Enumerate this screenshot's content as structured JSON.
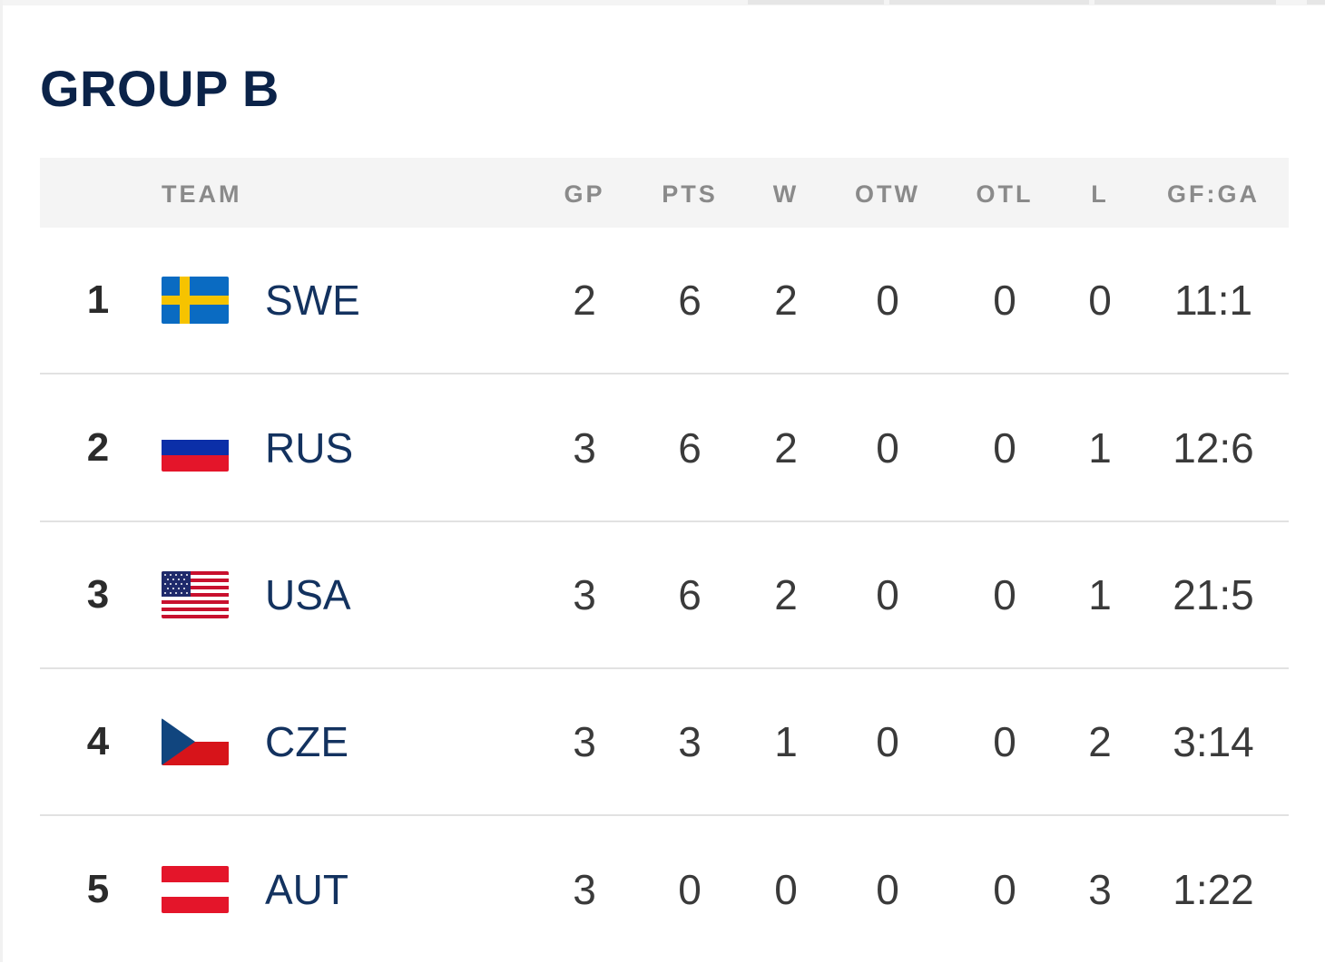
{
  "standings": {
    "title": "GROUP B",
    "columns": {
      "team": "TEAM",
      "gp": "GP",
      "pts": "PTS",
      "w": "W",
      "otw": "OTW",
      "otl": "OTL",
      "l": "L",
      "gfga": "GF:GA"
    },
    "rows": [
      {
        "rank": "1",
        "team": "SWE",
        "flag_icon": "sweden-flag-icon",
        "gp": "2",
        "pts": "6",
        "w": "2",
        "otw": "0",
        "otl": "0",
        "l": "0",
        "gfga": "11:1"
      },
      {
        "rank": "2",
        "team": "RUS",
        "flag_icon": "russia-flag-icon",
        "gp": "3",
        "pts": "6",
        "w": "2",
        "otw": "0",
        "otl": "0",
        "l": "1",
        "gfga": "12:6"
      },
      {
        "rank": "3",
        "team": "USA",
        "flag_icon": "usa-flag-icon",
        "gp": "3",
        "pts": "6",
        "w": "2",
        "otw": "0",
        "otl": "0",
        "l": "1",
        "gfga": "21:5"
      },
      {
        "rank": "4",
        "team": "CZE",
        "flag_icon": "czech-republic-flag-icon",
        "gp": "3",
        "pts": "3",
        "w": "1",
        "otw": "0",
        "otl": "0",
        "l": "2",
        "gfga": "3:14"
      },
      {
        "rank": "5",
        "team": "AUT",
        "flag_icon": "austria-flag-icon",
        "gp": "3",
        "pts": "0",
        "w": "0",
        "otw": "0",
        "otl": "0",
        "l": "3",
        "gfga": "1:22"
      }
    ]
  },
  "colors": {
    "title": "#0b2349",
    "team_text": "#13325f",
    "header_bg": "#f4f4f4",
    "header_text": "#8a8a8a",
    "row_divider": "#e2e2e2"
  }
}
